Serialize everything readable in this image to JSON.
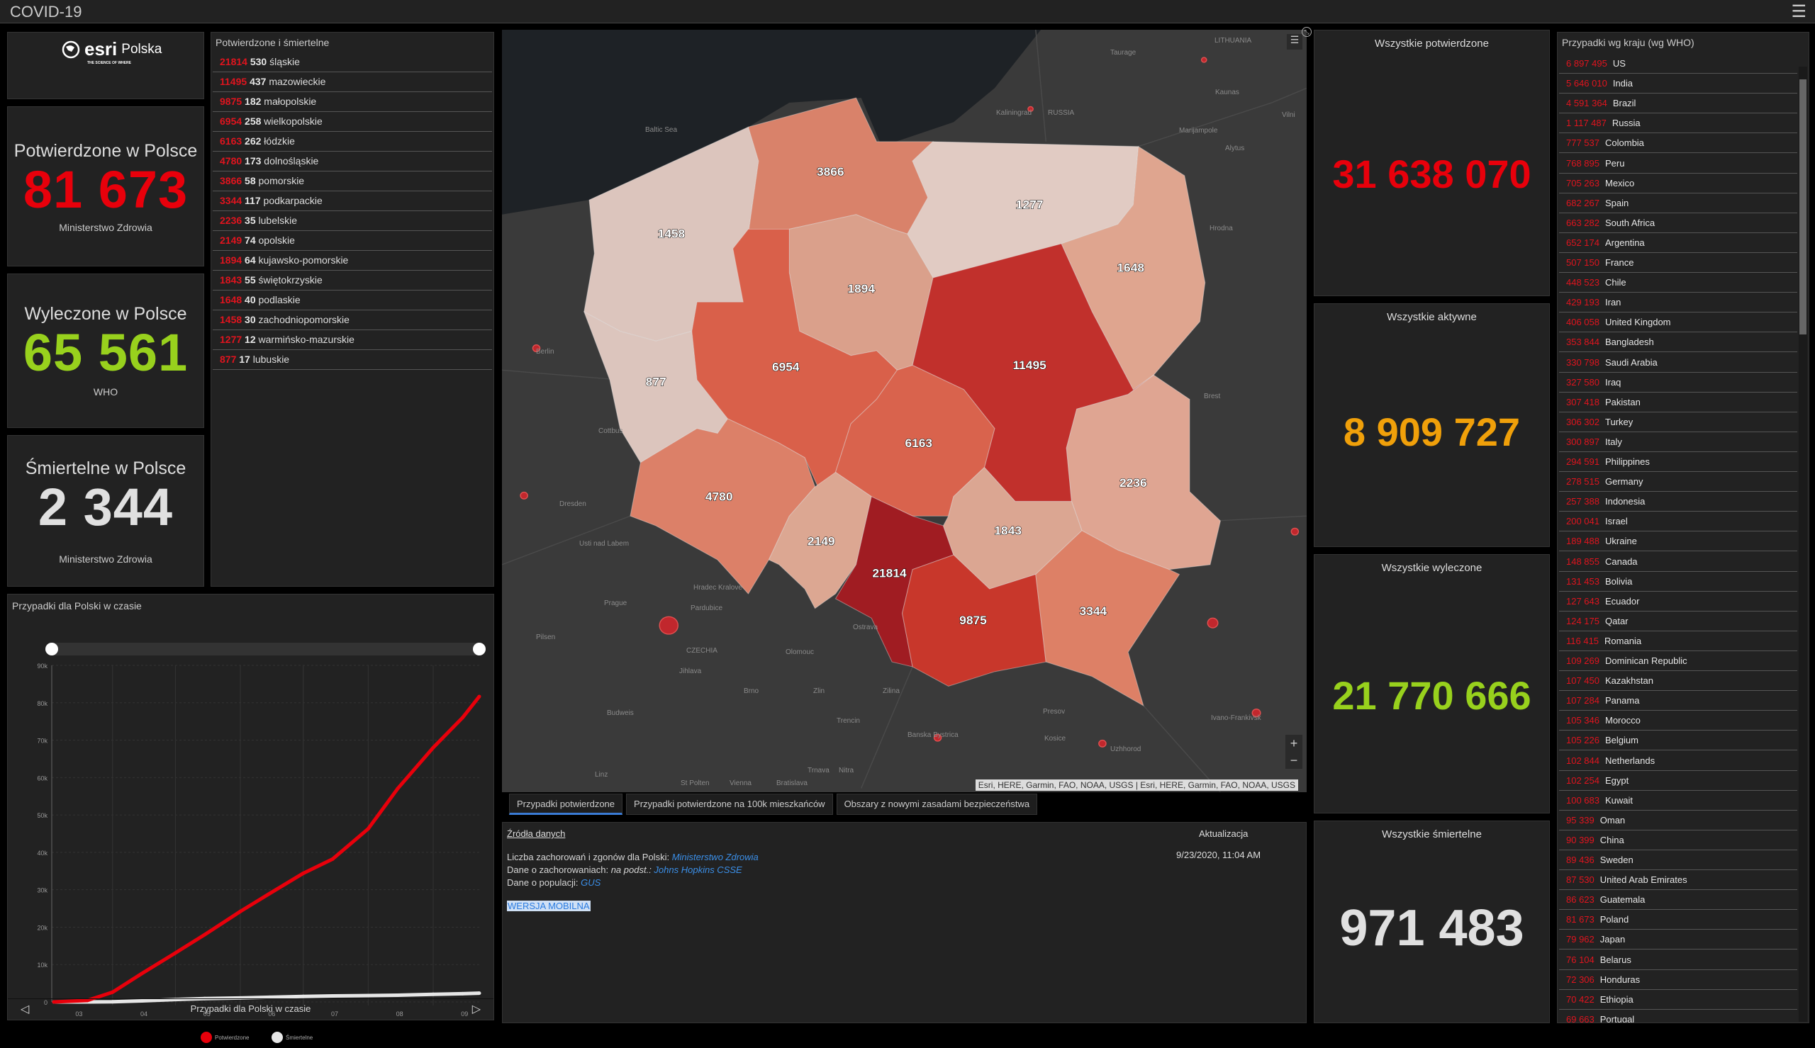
{
  "app": {
    "title": "COVID-19",
    "menu_icon": "hamburger-icon"
  },
  "logo": {
    "brand": "esri",
    "suffix": "Polska",
    "tagline": "THE SCIENCE OF WHERE"
  },
  "poland": {
    "confirmed": {
      "label": "Potwierdzone w Polsce",
      "value": "81 673",
      "source": "Ministerstwo Zdrowia"
    },
    "recovered": {
      "label": "Wyleczone w Polsce",
      "value": "65 561",
      "source": "WHO"
    },
    "deaths": {
      "label": "Śmiertelne w Polsce",
      "value": "2 344",
      "source": "Ministerstwo Zdrowia"
    }
  },
  "provinces": {
    "title": "Potwierdzone i śmiertelne",
    "items": [
      {
        "confirmed": "21814",
        "deaths": "530",
        "name": "śląskie"
      },
      {
        "confirmed": "11495",
        "deaths": "437",
        "name": "mazowieckie"
      },
      {
        "confirmed": "9875",
        "deaths": "182",
        "name": "małopolskie"
      },
      {
        "confirmed": "6954",
        "deaths": "258",
        "name": "wielkopolskie"
      },
      {
        "confirmed": "6163",
        "deaths": "262",
        "name": "łódzkie"
      },
      {
        "confirmed": "4780",
        "deaths": "173",
        "name": "dolnośląskie"
      },
      {
        "confirmed": "3866",
        "deaths": "58",
        "name": "pomorskie"
      },
      {
        "confirmed": "3344",
        "deaths": "117",
        "name": "podkarpackie"
      },
      {
        "confirmed": "2236",
        "deaths": "35",
        "name": "lubelskie"
      },
      {
        "confirmed": "2149",
        "deaths": "74",
        "name": "opolskie"
      },
      {
        "confirmed": "1894",
        "deaths": "64",
        "name": "kujawsko-pomorskie"
      },
      {
        "confirmed": "1843",
        "deaths": "55",
        "name": "świętokrzyskie"
      },
      {
        "confirmed": "1648",
        "deaths": "40",
        "name": "podlaskie"
      },
      {
        "confirmed": "1458",
        "deaths": "30",
        "name": "zachodniopomorskie"
      },
      {
        "confirmed": "1277",
        "deaths": "12",
        "name": "warmińsko-mazurskie"
      },
      {
        "confirmed": "877",
        "deaths": "17",
        "name": "lubuskie"
      }
    ]
  },
  "global": {
    "confirmed": {
      "label": "Wszystkie potwierdzone",
      "value": "31 638 070"
    },
    "active": {
      "label": "Wszystkie aktywne",
      "value": "8 909 727"
    },
    "recovered": {
      "label": "Wszystkie wyleczone",
      "value": "21 770 666"
    },
    "deaths": {
      "label": "Wszystkie śmiertelne",
      "value": "971 483"
    }
  },
  "countries": {
    "title": "Przypadki wg kraju (wg WHO)",
    "items": [
      {
        "value": "6 897 495",
        "name": "US"
      },
      {
        "value": "5 646 010",
        "name": "India"
      },
      {
        "value": "4 591 364",
        "name": "Brazil"
      },
      {
        "value": "1 117 487",
        "name": "Russia"
      },
      {
        "value": "777 537",
        "name": "Colombia"
      },
      {
        "value": "768 895",
        "name": "Peru"
      },
      {
        "value": "705 263",
        "name": "Mexico"
      },
      {
        "value": "682 267",
        "name": "Spain"
      },
      {
        "value": "663 282",
        "name": "South Africa"
      },
      {
        "value": "652 174",
        "name": "Argentina"
      },
      {
        "value": "507 150",
        "name": "France"
      },
      {
        "value": "448 523",
        "name": "Chile"
      },
      {
        "value": "429 193",
        "name": "Iran"
      },
      {
        "value": "406 058",
        "name": "United Kingdom"
      },
      {
        "value": "353 844",
        "name": "Bangladesh"
      },
      {
        "value": "330 798",
        "name": "Saudi Arabia"
      },
      {
        "value": "327 580",
        "name": "Iraq"
      },
      {
        "value": "307 418",
        "name": "Pakistan"
      },
      {
        "value": "306 302",
        "name": "Turkey"
      },
      {
        "value": "300 897",
        "name": "Italy"
      },
      {
        "value": "294 591",
        "name": "Philippines"
      },
      {
        "value": "278 515",
        "name": "Germany"
      },
      {
        "value": "257 388",
        "name": "Indonesia"
      },
      {
        "value": "200 041",
        "name": "Israel"
      },
      {
        "value": "189 488",
        "name": "Ukraine"
      },
      {
        "value": "148 855",
        "name": "Canada"
      },
      {
        "value": "131 453",
        "name": "Bolivia"
      },
      {
        "value": "127 643",
        "name": "Ecuador"
      },
      {
        "value": "124 175",
        "name": "Qatar"
      },
      {
        "value": "116 415",
        "name": "Romania"
      },
      {
        "value": "109 269",
        "name": "Dominican Republic"
      },
      {
        "value": "107 450",
        "name": "Kazakhstan"
      },
      {
        "value": "107 284",
        "name": "Panama"
      },
      {
        "value": "105 346",
        "name": "Morocco"
      },
      {
        "value": "105 226",
        "name": "Belgium"
      },
      {
        "value": "102 844",
        "name": "Netherlands"
      },
      {
        "value": "102 254",
        "name": "Egypt"
      },
      {
        "value": "100 683",
        "name": "Kuwait"
      },
      {
        "value": "95 339",
        "name": "Oman"
      },
      {
        "value": "90 399",
        "name": "China"
      },
      {
        "value": "89 436",
        "name": "Sweden"
      },
      {
        "value": "87 530",
        "name": "United Arab Emirates"
      },
      {
        "value": "86 623",
        "name": "Guatemala"
      },
      {
        "value": "81 673",
        "name": "Poland"
      },
      {
        "value": "79 962",
        "name": "Japan"
      },
      {
        "value": "76 104",
        "name": "Belarus"
      },
      {
        "value": "72 306",
        "name": "Honduras"
      },
      {
        "value": "70 422",
        "name": "Ethiopia"
      },
      {
        "value": "69 663",
        "name": "Portugal"
      }
    ]
  },
  "map": {
    "attribution": "Esri, HERE, Garmin, FAO, NOAA, USGS | Esri, HERE, Garmin, FAO, NOAA, USGS",
    "zoom_in": "+",
    "zoom_out": "−",
    "place_labels": [
      "LITHUANIA",
      "Taurage",
      "Kaunas",
      "Kaliningrad",
      "RUSSIA",
      "Marijampole",
      "Alytus",
      "Vilni",
      "Baltic Sea",
      "Hrodna",
      "Berlin",
      "Cottbus",
      "Dresden",
      "Usti nad Labem",
      "Prague",
      "Hradec Kralove",
      "Pardubice",
      "Pilsen",
      "CZECHIA",
      "Ostrava",
      "Olomouc",
      "Jihlava",
      "Brno",
      "Zlin",
      "Zilina",
      "Budweis",
      "Trencin",
      "Banska Bystrica",
      "Presov",
      "Kosice",
      "Uzhhorod",
      "Ivano-Frankivsk",
      "Trnava",
      "Nitra",
      "Linz",
      "St Polten",
      "Vienna",
      "Bratislava",
      "Brest"
    ],
    "region_labels": {
      "zachodniopomorskie": "1458",
      "pomorskie": "3866",
      "warminsko": "1277",
      "podlaskie": "1648",
      "kujawsko": "1894",
      "wielkopolskie": "6954",
      "lubuskie": "877",
      "mazowieckie": "11495",
      "lodzkie": "6163",
      "lubelskie": "2236",
      "dolnoslaskie": "4780",
      "opolskie": "2149",
      "slaskie": "21814",
      "swietokrzyskie": "1843",
      "malopolskie": "9875",
      "podkarpackie": "3344"
    }
  },
  "tabs": [
    {
      "label": "Przypadki potwierdzone",
      "active": true
    },
    {
      "label": "Przypadki potwierdzone na 100k mieszkańców",
      "active": false
    },
    {
      "label": "Obszary z nowymi zasadami bezpieczeństwa",
      "active": false
    }
  ],
  "sources": {
    "title": "Źródła danych",
    "line1_text": "Liczba zachorowań i zgonów dla Polski: ",
    "line1_link": "Ministerstwo Zdrowia",
    "line2_text": "Dane o zachorowaniach: ",
    "line2_italic": "na podst.: ",
    "line2_link": "Johns Hopkins CSSE",
    "line3_text": "Dane o populacji: ",
    "line3_link": "GUS",
    "mobile": "WERSJA MOBILNA",
    "update_label": "Aktualizacja",
    "update_value": "9/23/2020, 11:04 AM"
  },
  "chart_panel": {
    "title": "Przypadki dla Polski w czasie",
    "footer": "Przypadki dla Polski w czasie"
  },
  "colors": {
    "confirmed": "#e8000b",
    "recovered": "#98d11d",
    "active": "#f0a00a",
    "deaths": "#e0e0e0"
  },
  "chart_data": {
    "type": "line",
    "x_tick_labels": [
      "03",
      "04",
      "05",
      "06",
      "07",
      "08",
      "09"
    ],
    "y_tick_labels": [
      "0",
      "10k",
      "20k",
      "30k",
      "40k",
      "50k",
      "60k",
      "70k",
      "80k",
      "90k"
    ],
    "ylim": [
      0,
      90000
    ],
    "xlim": [
      "2020-03-03",
      "2020-09-23"
    ],
    "grid": true,
    "legend": "bottom",
    "x": [
      "2020-03-04",
      "2020-03-20",
      "2020-04-01",
      "2020-04-15",
      "2020-05-01",
      "2020-05-15",
      "2020-06-01",
      "2020-06-15",
      "2020-07-01",
      "2020-07-15",
      "2020-08-01",
      "2020-08-15",
      "2020-09-01",
      "2020-09-15",
      "2020-09-23"
    ],
    "series": [
      {
        "name": "Potwierdzone",
        "color": "#e8000b",
        "values": [
          1,
          400,
          2600,
          7600,
          13100,
          18000,
          24200,
          29000,
          34400,
          38200,
          46300,
          57000,
          68000,
          76000,
          81673
        ]
      },
      {
        "name": "Śmiertelne",
        "color": "#e6e6e6",
        "values": [
          0,
          5,
          40,
          290,
          650,
          900,
          1070,
          1260,
          1460,
          1600,
          1700,
          1800,
          2040,
          2200,
          2344
        ]
      }
    ]
  }
}
